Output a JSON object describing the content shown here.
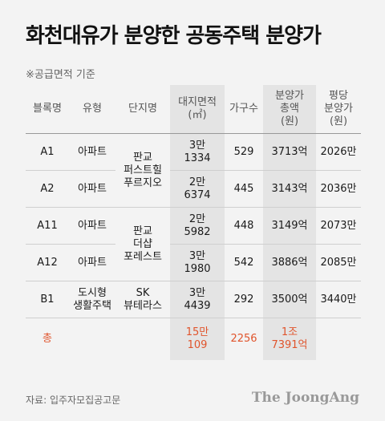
{
  "title": "화천대유가 분양한 공동주택 분양가",
  "note": "※공급면적 기준",
  "headers": {
    "block": "블록명",
    "type": "유형",
    "complex": "단지명",
    "area1": "대지면적",
    "area2": "(㎡)",
    "households": "가구수",
    "total1": "분양가",
    "total2": "총액",
    "total3": "(원)",
    "avg1": "평당",
    "avg2": "분양가",
    "avg3": "(원)"
  },
  "rows": [
    {
      "block": "A1",
      "type": "아파트",
      "area1": "3만",
      "area2": "1334",
      "households": "529",
      "total": "3713억",
      "avg": "2026만"
    },
    {
      "block": "A2",
      "type": "아파트",
      "area1": "2만",
      "area2": "6374",
      "households": "445",
      "total": "3143억",
      "avg": "2036만"
    },
    {
      "block": "A11",
      "type": "아파트",
      "area1": "2만",
      "area2": "5982",
      "households": "448",
      "total": "3149억",
      "avg": "2073만"
    },
    {
      "block": "A12",
      "type": "아파트",
      "area1": "3만",
      "area2": "1980",
      "households": "542",
      "total": "3886억",
      "avg": "2085만"
    },
    {
      "block": "B1",
      "type1": "도시형",
      "type2": "생활주택",
      "area1": "3만",
      "area2": "4439",
      "households": "292",
      "total": "3500억",
      "avg": "3440만"
    }
  ],
  "complexes": {
    "c1": [
      "판교",
      "퍼스트힐",
      "푸르지오"
    ],
    "c2": [
      "판교",
      "더샵",
      "포레스트"
    ],
    "c3": [
      "SK",
      "뷰테라스"
    ]
  },
  "total": {
    "label": "총",
    "area1": "15만",
    "area2": "109",
    "households": "2256",
    "total1": "1조",
    "total2": "7391억"
  },
  "source": "자료: 입주자모집공고문",
  "brand": "The JoongAng",
  "colors": {
    "accent": "#e0542c",
    "highlight": "#e4e4e4",
    "background": "#f3f3f3"
  }
}
